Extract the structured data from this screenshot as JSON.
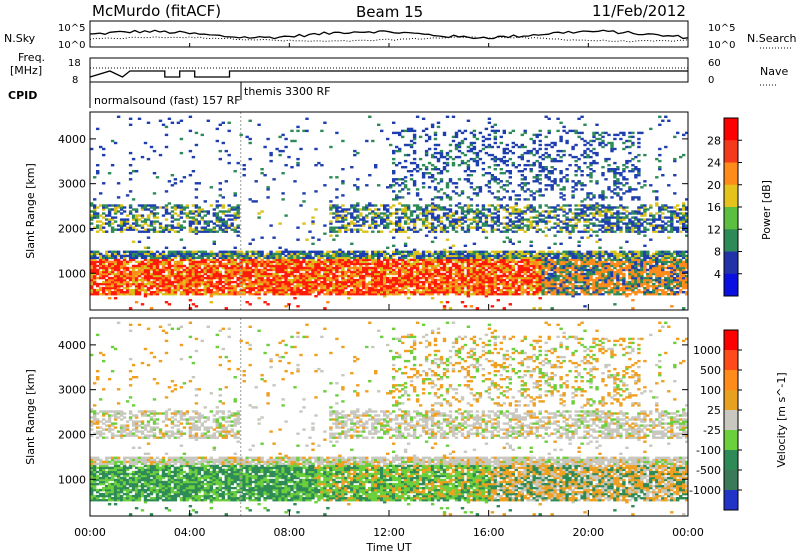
{
  "header": {
    "station": "McMurdo (fitACF)",
    "beam": "Beam 15",
    "date": "11/Feb/2012"
  },
  "small_panels": {
    "nsky_label": "N.Sky",
    "nsearch_label": "N.Search",
    "nsky_ticks": [
      "10^5",
      "10^0"
    ],
    "nsearch_ticks": [
      "10^5",
      "10^0"
    ],
    "freq_label_1": "Freq.",
    "freq_label_2": "[MHz]",
    "freq_ticks": [
      "18",
      "8"
    ],
    "nave_label": "Nave",
    "nave_ticks": [
      "60",
      "0"
    ],
    "cpid_label": "CPID",
    "cpid_text_1": "normalsound (fast) 157 RF",
    "cpid_text_2": "themis 3300 RF"
  },
  "chart_data": [
    {
      "type": "heatmap",
      "title": "Power",
      "ylabel": "Slant Range [km]",
      "xlabel": "",
      "colorbar_label": "Power [dB]",
      "colorbar_ticks": [
        "4",
        "8",
        "12",
        "16",
        "20",
        "24",
        "28"
      ],
      "colorbar_colors": [
        "#0a10e0",
        "#2233a8",
        "#2e8b57",
        "#5cbf40",
        "#e6c21c",
        "#ff8c1a",
        "#f33a1a",
        "#ff0000"
      ],
      "yticks": [
        "1000",
        "2000",
        "3000",
        "4000"
      ],
      "ylim": [
        180,
        4600
      ],
      "xlim": [
        0,
        24
      ],
      "xticks": [
        "00:00",
        "04:00",
        "08:00",
        "12:00",
        "16:00",
        "20:00",
        "00:00"
      ],
      "grid": false
    },
    {
      "type": "heatmap",
      "title": "Velocity",
      "ylabel": "Slant Range [km]",
      "xlabel": "Time UT",
      "colorbar_label": "Velocity [m s^-1]",
      "colorbar_ticks": [
        "1000",
        "500",
        "100",
        "25",
        "-25",
        "-100",
        "-500",
        "-1000"
      ],
      "colorbar_colors": [
        "#2233c8",
        "#3a7a5a",
        "#2e8b57",
        "#6ccf3c",
        "#c8c8c0",
        "#e8a020",
        "#ff8c1a",
        "#ff4a1a",
        "#ff0000"
      ],
      "yticks": [
        "1000",
        "2000",
        "3000",
        "4000"
      ],
      "ylim": [
        180,
        4600
      ],
      "xlim": [
        0,
        24
      ],
      "xticks": [
        "00:00",
        "04:00",
        "08:00",
        "12:00",
        "16:00",
        "20:00",
        "00:00"
      ],
      "grid": false
    }
  ],
  "colors": {
    "power_blue": "#1f3fb0",
    "power_green": "#2e8b57",
    "power_yellow": "#d9c21a",
    "power_orange": "#ff8c1a",
    "power_red": "#ff1a0a",
    "vel_gray": "#c8c8c0",
    "vel_darkgreen": "#2e8b57",
    "vel_lightgreen": "#6ccf3c",
    "vel_orange": "#f0a020"
  }
}
